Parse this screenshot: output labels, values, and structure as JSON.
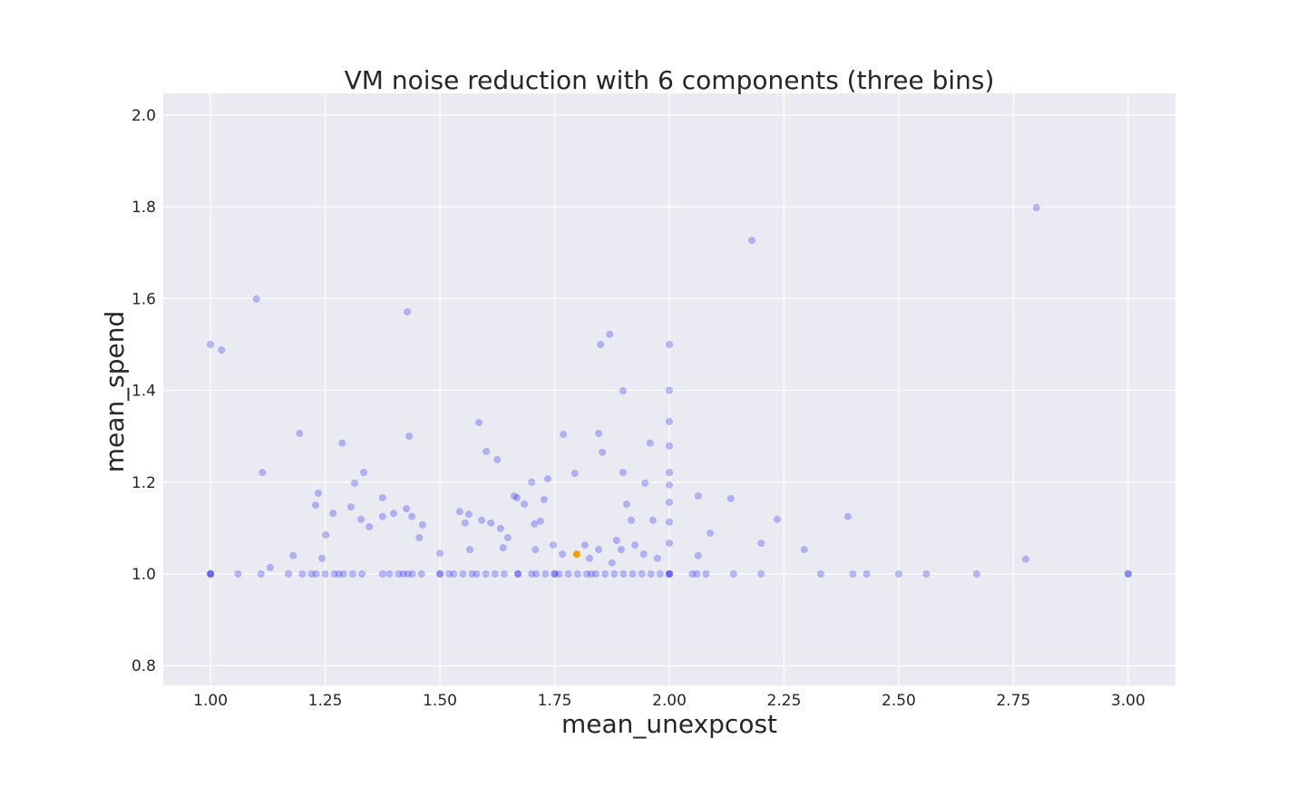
{
  "chart_data": {
    "type": "scatter",
    "title": "VM noise reduction with 6 components (three bins)",
    "x_label": "mean_unexpcost",
    "y_label": "mean_spend",
    "xlim": [
      0.897,
      3.103
    ],
    "ylim": [
      0.757,
      2.047
    ],
    "xticks": [
      {
        "value": 1,
        "label": "1.00"
      },
      {
        "value": 1.25,
        "label": "1.25"
      },
      {
        "value": 1.5,
        "label": "1.50"
      },
      {
        "value": 1.75,
        "label": "1.75"
      },
      {
        "value": 2,
        "label": "2.00"
      },
      {
        "value": 2.25,
        "label": "2.25"
      },
      {
        "value": 2.5,
        "label": "2.50"
      },
      {
        "value": 2.75,
        "label": "2.75"
      },
      {
        "value": 3,
        "label": "3.00"
      }
    ],
    "yticks": [
      0.8,
      {
        "value": 1,
        "label": "1.0"
      },
      1.2,
      1.4,
      1.6,
      1.8,
      {
        "value": 2,
        "label": "2.0"
      }
    ],
    "grid": true,
    "series": [
      {
        "color": "#0000ff",
        "x": [
          1.0,
          1.0,
          1.0,
          1.06,
          1.11,
          1.17,
          1.2,
          1.22,
          1.23,
          1.25,
          1.27,
          1.28,
          1.29,
          1.31,
          1.33,
          1.375,
          1.39,
          1.41,
          1.42,
          1.43,
          1.44,
          1.46,
          1.5,
          1.5,
          1.52,
          1.53,
          1.55,
          1.57,
          1.58,
          1.6,
          1.62,
          1.64,
          1.67,
          1.67,
          1.7,
          1.71,
          1.73,
          1.75,
          1.75,
          1.76,
          1.78,
          1.8,
          1.82,
          1.83,
          1.84,
          1.86,
          1.88,
          1.9,
          1.92,
          1.94,
          1.96,
          1.98,
          2.0,
          2.0,
          2.0,
          2.05,
          2.06,
          2.08,
          2.14,
          2.2,
          2.33,
          2.4,
          2.43,
          2.5,
          2.56,
          2.67,
          3.0,
          3.0,
          1.0,
          1.024,
          1.1,
          1.113,
          1.13,
          1.18,
          1.194,
          1.229,
          1.235,
          1.243,
          1.251,
          1.267,
          1.287,
          1.306,
          1.314,
          1.328,
          1.334,
          1.346,
          1.375,
          1.375,
          1.399,
          1.427,
          1.429,
          1.433,
          1.439,
          1.455,
          1.462,
          1.5,
          1.543,
          1.555,
          1.563,
          1.565,
          1.585,
          1.591,
          1.601,
          1.611,
          1.625,
          1.632,
          1.638,
          1.648,
          1.662,
          1.668,
          1.684,
          1.7,
          1.706,
          1.719,
          1.735,
          1.727,
          1.769,
          1.794,
          1.846,
          1.85,
          1.854,
          1.87,
          1.899,
          1.899,
          1.907,
          1.917,
          1.947,
          1.958,
          1.964,
          2.0,
          2.0,
          2.0,
          2.0,
          2.0,
          2.0,
          2.0,
          2.0,
          2.0,
          2.063,
          2.089,
          2.134,
          2.18,
          2.2,
          2.235,
          2.294,
          2.389,
          2.777,
          2.8,
          1.846,
          1.816,
          1.925,
          1.885,
          1.767,
          1.747,
          1.708,
          1.826,
          1.944,
          1.974,
          2.063,
          1.895,
          1.875
        ],
        "values": [
          1,
          1,
          1,
          1,
          1,
          1,
          1,
          1,
          1,
          1,
          1,
          1,
          1,
          1,
          1,
          1,
          1,
          1,
          1,
          1,
          1,
          1,
          1,
          1,
          1,
          1,
          1,
          1,
          1,
          1,
          1,
          1,
          1,
          1,
          1,
          1,
          1,
          1,
          1,
          1,
          1,
          1,
          1,
          1,
          1,
          1,
          1,
          1,
          1,
          1,
          1,
          1,
          1,
          1,
          1,
          1,
          1,
          1,
          1,
          1,
          1,
          1,
          1,
          1,
          1,
          1,
          1,
          1,
          1.5,
          1.488,
          1.599,
          1.221,
          1.014,
          1.04,
          1.306,
          1.15,
          1.176,
          1.034,
          1.085,
          1.132,
          1.285,
          1.146,
          1.198,
          1.119,
          1.221,
          1.103,
          1.166,
          1.125,
          1.132,
          1.142,
          1.571,
          1.3,
          1.125,
          1.079,
          1.107,
          1.045,
          1.136,
          1.111,
          1.13,
          1.053,
          1.33,
          1.117,
          1.267,
          1.111,
          1.249,
          1.099,
          1.057,
          1.079,
          1.17,
          1.166,
          1.152,
          1.2,
          1.109,
          1.115,
          1.207,
          1.162,
          1.304,
          1.219,
          1.306,
          1.5,
          1.265,
          1.522,
          1.399,
          1.221,
          1.152,
          1.117,
          1.198,
          1.285,
          1.117,
          1.5,
          1.4,
          1.332,
          1.279,
          1.221,
          1.194,
          1.156,
          1.113,
          1.067,
          1.17,
          1.089,
          1.164,
          1.727,
          1.067,
          1.119,
          1.053,
          1.125,
          1.032,
          1.798,
          1.053,
          1.063,
          1.063,
          1.073,
          1.043,
          1.063,
          1.053,
          1.034,
          1.043,
          1.034,
          1.04,
          1.053,
          1.024
        ]
      },
      {
        "color": "#f5a000",
        "x": [
          1.798
        ],
        "values": [
          1.043
        ]
      }
    ]
  }
}
